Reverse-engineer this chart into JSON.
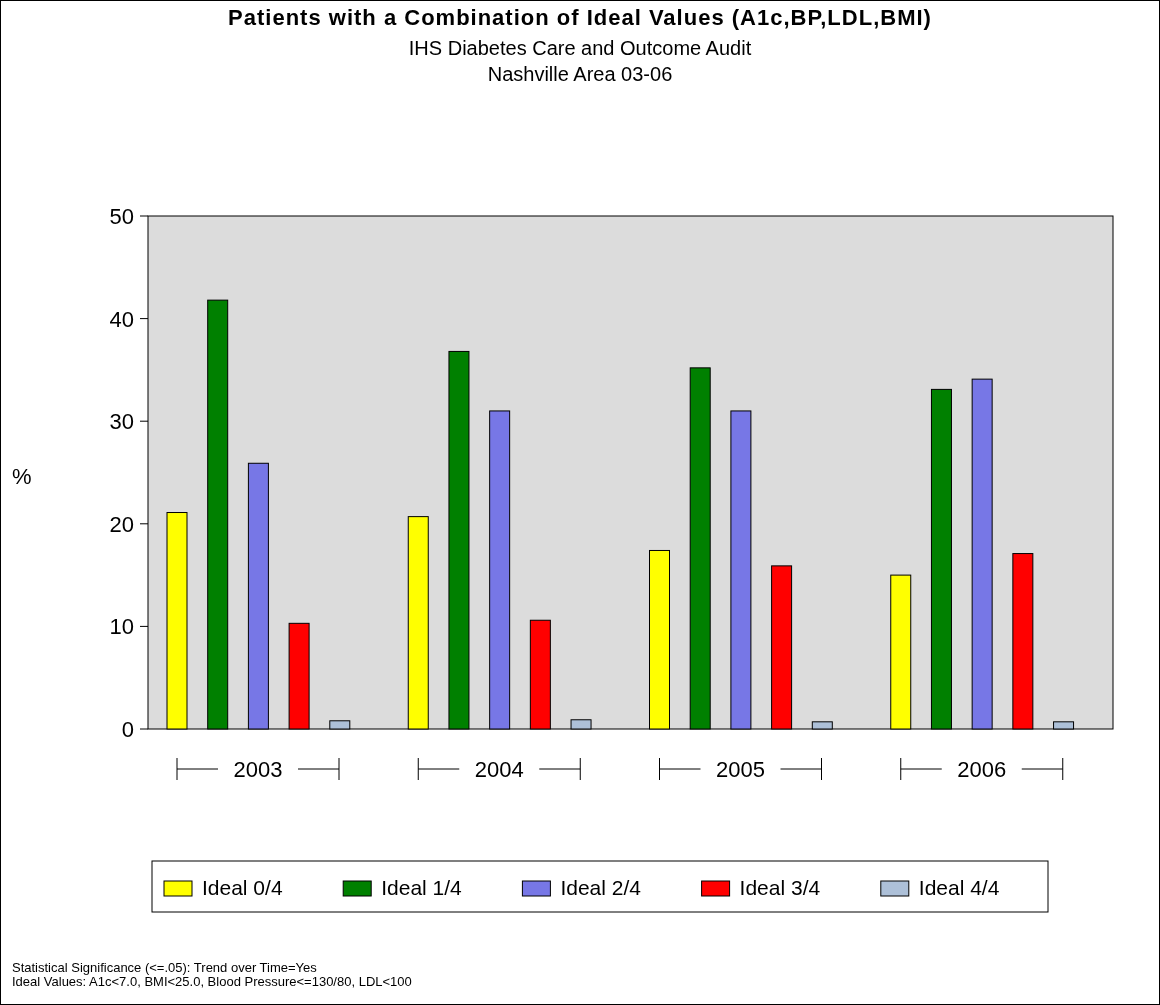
{
  "chart_data": {
    "type": "bar",
    "title": "Patients with a Combination of Ideal Values (A1c,BP,LDL,BMI)",
    "subtitle": "IHS Diabetes Care and Outcome Audit\nNashville Area 03-06",
    "ylabel": "%",
    "categories": [
      "2003",
      "2004",
      "2005",
      "2006"
    ],
    "series": [
      {
        "name": "Ideal 0/4",
        "color": "#ffff00",
        "values": [
          21.1,
          20.7,
          17.4,
          15.0
        ]
      },
      {
        "name": "Ideal 1/4",
        "color": "#008000",
        "values": [
          41.8,
          36.8,
          35.2,
          33.1
        ]
      },
      {
        "name": "Ideal 2/4",
        "color": "#7777e6",
        "values": [
          25.9,
          31.0,
          31.0,
          34.1
        ]
      },
      {
        "name": "Ideal 3/4",
        "color": "#ff0000",
        "values": [
          10.3,
          10.6,
          15.9,
          17.1
        ]
      },
      {
        "name": "Ideal 4/4",
        "color": "#adc0d8",
        "values": [
          0.8,
          0.9,
          0.7,
          0.7
        ]
      }
    ],
    "ylim": [
      0,
      50
    ],
    "yticks": [
      0,
      10,
      20,
      30,
      40,
      50
    ],
    "grid": false,
    "legend": "bottom",
    "annotations": [
      "Statistical Significance (<=.05): Trend over Time=Yes",
      "Ideal Values: A1c<7.0, BMI<25.0, Blood Pressure<=130/80, LDL<100"
    ]
  }
}
